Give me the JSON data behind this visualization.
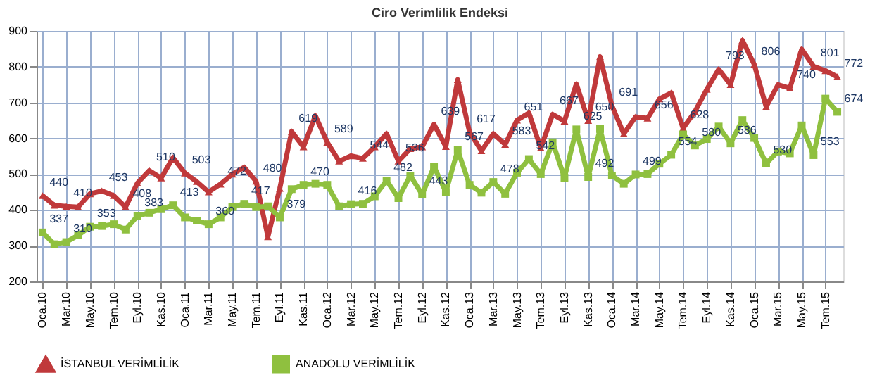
{
  "chart_data": {
    "type": "line",
    "title": "Ciro Verimlilik Endeksi",
    "categories": [
      "Oca.10",
      null,
      "Mar.10",
      null,
      "May.10",
      null,
      "Tem.10",
      null,
      "Eyl.10",
      null,
      "Kas.10",
      null,
      "Oca.11",
      null,
      "Mar.11",
      null,
      "May.11",
      null,
      "Tem.11",
      null,
      "Eyl.11",
      null,
      "Kas.11",
      null,
      "Oca.12",
      null,
      "Mar.12",
      null,
      "May.12",
      null,
      "Tem.12",
      null,
      "Eyl.12",
      null,
      "Kas.12",
      null,
      "Oca.13",
      null,
      "Mar.13",
      null,
      "May.13",
      null,
      "Tem.13",
      null,
      "Eyl.13",
      null,
      "Kas.13",
      null,
      "Oca.14",
      null,
      "Mar.14",
      null,
      "May.14",
      null,
      "Tem.14",
      null,
      "Eyl.14",
      null,
      "Kas.14",
      null,
      "Oca.15",
      null,
      "Mar.15",
      null,
      "May.15",
      null,
      "Tem.15",
      null
    ],
    "series": [
      {
        "name": "İSTANBUL VERİMLİLİK",
        "color": "#c0393b",
        "marker": "triangle",
        "values": [
          440,
          413,
          410,
          408,
          445,
          453,
          440,
          408,
          475,
          510,
          489,
          546,
          503,
          479,
          450,
          472,
          500,
          519,
          480,
          325,
          460,
          619,
          576,
          663,
          589,
          536,
          551,
          544,
          576,
          613,
          536,
          571,
          576,
          639,
          577,
          764,
          617,
          565,
          613,
          583,
          651,
          671,
          573,
          667,
          648,
          752,
          650,
          828,
          691,
          613,
          660,
          656,
          710,
          727,
          628,
          675,
          737,
          793,
          750,
          874,
          806,
          688,
          750,
          740,
          849,
          801,
          789,
          772
        ],
        "value_labels": [
          "440",
          null,
          "410",
          null,
          null,
          "453",
          null,
          "408",
          null,
          "510",
          null,
          null,
          "503",
          null,
          null,
          "472",
          null,
          null,
          "480",
          null,
          null,
          "619",
          null,
          null,
          "589",
          null,
          null,
          "544",
          null,
          null,
          "536",
          null,
          null,
          "639",
          null,
          null,
          "617",
          null,
          null,
          "583",
          "651",
          null,
          null,
          "667",
          null,
          null,
          "650",
          null,
          "691",
          null,
          null,
          "656",
          null,
          null,
          "628",
          null,
          null,
          "793",
          null,
          null,
          "806",
          null,
          null,
          "740",
          null,
          "801",
          null,
          "772"
        ]
      },
      {
        "name": "ANADOLU VERİMLİLİK",
        "color": "#8fc03f",
        "marker": "square",
        "values": [
          337,
          304,
          310,
          329,
          353,
          355,
          360,
          345,
          383,
          392,
          402,
          413,
          379,
          370,
          360,
          379,
          408,
          417,
          408,
          410,
          379,
          458,
          470,
          473,
          470,
          410,
          416,
          417,
          438,
          482,
          433,
          496,
          443,
          521,
          450,
          567,
          470,
          448,
          478,
          445,
          504,
          542,
          500,
          589,
          490,
          625,
          492,
          626,
          496,
          473,
          499,
          500,
          529,
          554,
          611,
          580,
          598,
          633,
          586,
          651,
          601,
          530,
          563,
          558,
          636,
          553,
          711,
          674
        ],
        "value_labels": [
          "337",
          null,
          "310",
          null,
          "353",
          null,
          null,
          null,
          "383",
          null,
          null,
          "413",
          null,
          null,
          "360",
          null,
          null,
          "417",
          null,
          null,
          "379",
          null,
          "470",
          null,
          null,
          null,
          "416",
          null,
          null,
          "482",
          null,
          null,
          "443",
          null,
          null,
          "567",
          null,
          null,
          "478",
          null,
          null,
          "542",
          null,
          null,
          null,
          "625",
          "492",
          null,
          null,
          null,
          "499",
          null,
          null,
          "554",
          null,
          "580",
          null,
          null,
          "586",
          null,
          null,
          "530",
          null,
          null,
          null,
          "553",
          null,
          "674"
        ]
      }
    ],
    "ylim": [
      200,
      900
    ],
    "yticks": [
      200,
      300,
      400,
      500,
      600,
      700,
      800,
      900
    ],
    "grid": true,
    "legend": "bottom",
    "line_style": "solid"
  }
}
